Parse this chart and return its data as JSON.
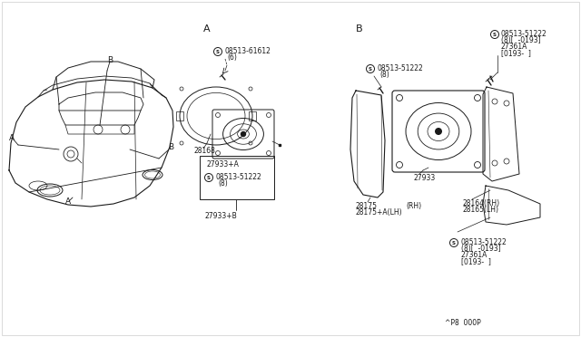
{
  "bg_color": "#ffffff",
  "line_color": "#1a1a1a",
  "fig_width": 6.4,
  "fig_height": 3.72,
  "footer": "^P8  000P",
  "sec_a_label": "A",
  "sec_b_label": "B",
  "parts": {
    "screw_a_top_num": "08513-61612",
    "screw_a_top_qty": "(6)",
    "speaker_frame_a": "28168",
    "bracket_a_label": "27933+A",
    "screw_a_bot_num": "08513-51222",
    "screw_a_bot_qty": "(8)",
    "bracket_b_label": "27933+B",
    "screw_b_top_num": "08513-51222",
    "screw_b_top_l1": "(8)[  -0193]",
    "screw_b_top_l2": "27361A",
    "screw_b_top_l3": "[0193-  ]",
    "screw_b_mid_num": "08513-51222",
    "screw_b_mid_qty": "(8)",
    "cover_rh": "28175",
    "cover_lh": "28175+A(LH)",
    "cover_rh_label": "(RH)",
    "speaker_b": "27933",
    "bracket_rh": "28164(RH)",
    "bracket_lh": "28165(LH)",
    "screw_b_bot_num": "08513-51222",
    "screw_b_bot_l1": "(8)[  -0193]",
    "screw_b_bot_l2": "27361A",
    "screw_b_bot_l3": "[0193-  ]"
  }
}
